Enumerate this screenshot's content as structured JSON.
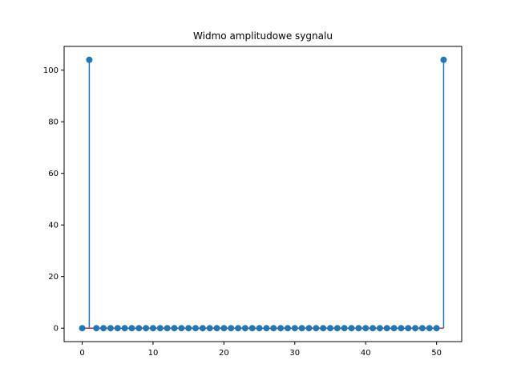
{
  "chart_data": {
    "type": "stem",
    "title": "Widmo amplitudowe sygnalu",
    "xlabel": "",
    "ylabel": "",
    "x": [
      0,
      1,
      2,
      3,
      4,
      5,
      6,
      7,
      8,
      9,
      10,
      11,
      12,
      13,
      14,
      15,
      16,
      17,
      18,
      19,
      20,
      21,
      22,
      23,
      24,
      25,
      26,
      27,
      28,
      29,
      30,
      31,
      32,
      33,
      34,
      35,
      36,
      37,
      38,
      39,
      40,
      41,
      42,
      43,
      44,
      45,
      46,
      47,
      48,
      49,
      50,
      51
    ],
    "values": [
      0,
      104,
      0,
      0,
      0,
      0,
      0,
      0,
      0,
      0,
      0,
      0,
      0,
      0,
      0,
      0,
      0,
      0,
      0,
      0,
      0,
      0,
      0,
      0,
      0,
      0,
      0,
      0,
      0,
      0,
      0,
      0,
      0,
      0,
      0,
      0,
      0,
      0,
      0,
      0,
      0,
      0,
      0,
      0,
      0,
      0,
      0,
      0,
      0,
      0,
      0,
      104
    ],
    "xlim": [
      -2.55,
      53.55
    ],
    "ylim": [
      -5.2,
      109.2
    ],
    "xticks": [
      0,
      10,
      20,
      30,
      40,
      50
    ],
    "yticks": [
      0,
      20,
      40,
      60,
      80,
      100
    ],
    "grid": false,
    "colors": {
      "stem": "#1f77b4",
      "baseline": "#d62728"
    }
  }
}
